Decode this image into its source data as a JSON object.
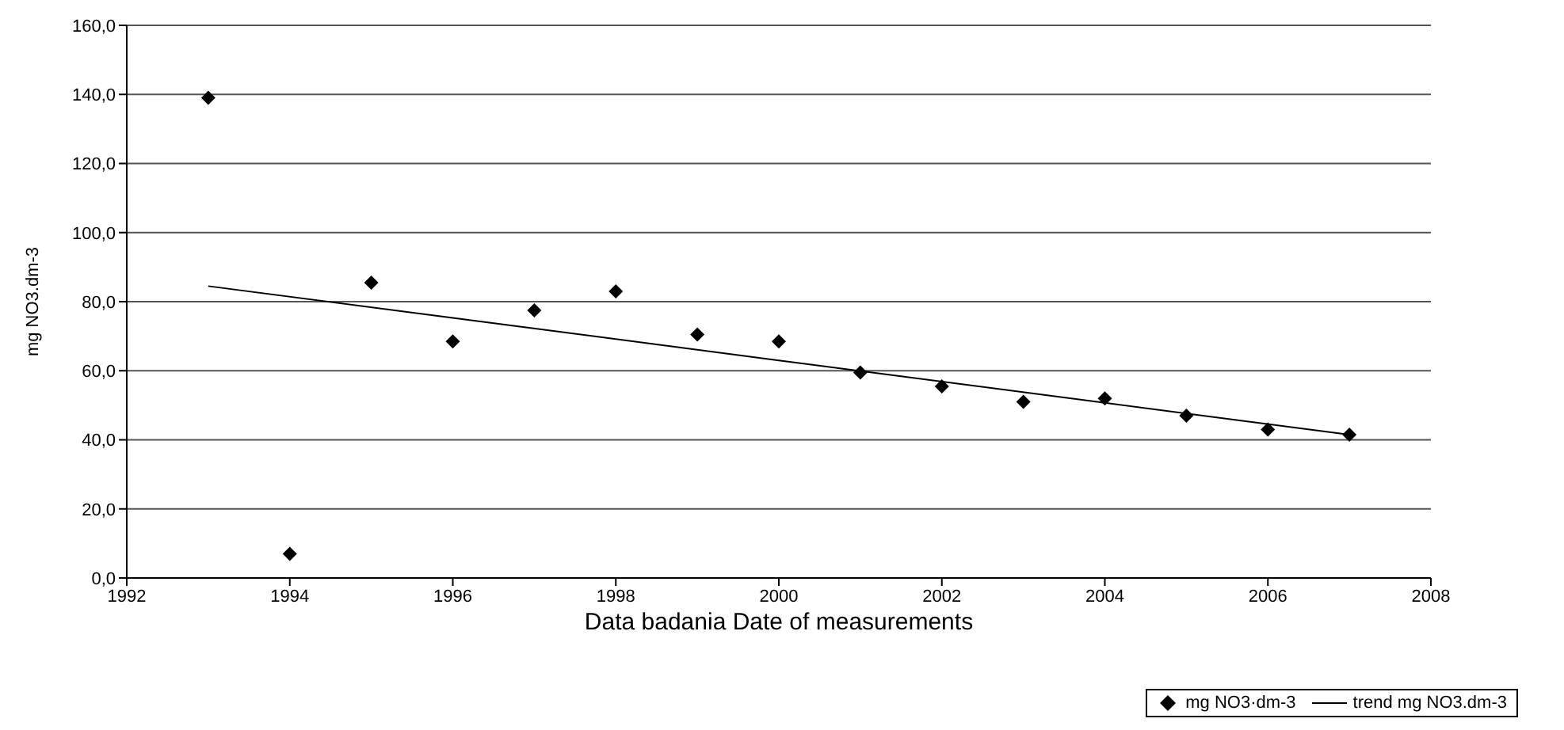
{
  "chart_data": {
    "type": "scatter",
    "xlabel": "Data badania   Date of measurements",
    "ylabel": "mg NO3.dm-3",
    "x": [
      1993,
      1994,
      1995,
      1996,
      1997,
      1998,
      1999,
      2000,
      2001,
      2002,
      2003,
      2004,
      2005,
      2006,
      2007
    ],
    "series": [
      {
        "name": "mg NO3·dm-3",
        "color": "#000000",
        "marker": "diamond",
        "values": [
          139,
          7,
          85.5,
          68.5,
          77.5,
          83,
          70.5,
          68.5,
          59.5,
          55.5,
          51,
          52,
          47,
          43,
          41.5
        ]
      },
      {
        "name": "trend mg NO3.dm-3",
        "type": "line",
        "color": "#000000",
        "marker": "none",
        "x": [
          1993,
          1996,
          2000,
          2004,
          2007
        ],
        "values": [
          84.5,
          75.3,
          63,
          50.7,
          41.5
        ]
      }
    ],
    "xlim": [
      1992,
      2008
    ],
    "xticks": [
      1992,
      1994,
      1996,
      1998,
      2000,
      2002,
      2004,
      2006,
      2008
    ],
    "ylim": [
      0,
      160
    ],
    "yticks": [
      {
        "value": 0,
        "label": "0,0"
      },
      {
        "value": 20,
        "label": "20,0"
      },
      {
        "value": 40,
        "label": "40,0"
      },
      {
        "value": 60,
        "label": "60,0"
      },
      {
        "value": 80,
        "label": "80,0"
      },
      {
        "value": 100,
        "label": "100,0"
      },
      {
        "value": 120,
        "label": "120,0"
      },
      {
        "value": 140,
        "label": "140,0"
      },
      {
        "value": 160,
        "label": "160,0"
      }
    ],
    "grid": "y",
    "legend": "bottom right"
  }
}
